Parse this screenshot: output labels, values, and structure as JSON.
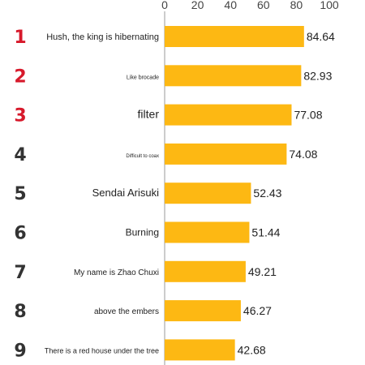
{
  "chart_data": {
    "type": "bar",
    "orientation": "horizontal",
    "xlim": [
      0,
      100
    ],
    "ticks": [
      0,
      20,
      40,
      60,
      80,
      100
    ],
    "bar_color": "#FDB813",
    "rank_highlight_color": "#D7192B",
    "rank_default_color": "#333333",
    "items": [
      {
        "rank": "1",
        "label": "Hush, the king is hibernating",
        "value": 84.64
      },
      {
        "rank": "2",
        "label": "Like brocade",
        "value": 82.93
      },
      {
        "rank": "3",
        "label": "filter",
        "value": 77.08
      },
      {
        "rank": "4",
        "label": "Difficult to coax",
        "value": 74.08
      },
      {
        "rank": "5",
        "label": "Sendai Arisuki",
        "value": 52.43
      },
      {
        "rank": "6",
        "label": "Burning",
        "value": 51.44
      },
      {
        "rank": "7",
        "label": "My name is Zhao Chuxi",
        "value": 49.21
      },
      {
        "rank": "8",
        "label": "above the embers",
        "value": 46.27
      },
      {
        "rank": "9",
        "label": "There is a red house under the tree",
        "value": 42.68
      }
    ]
  }
}
